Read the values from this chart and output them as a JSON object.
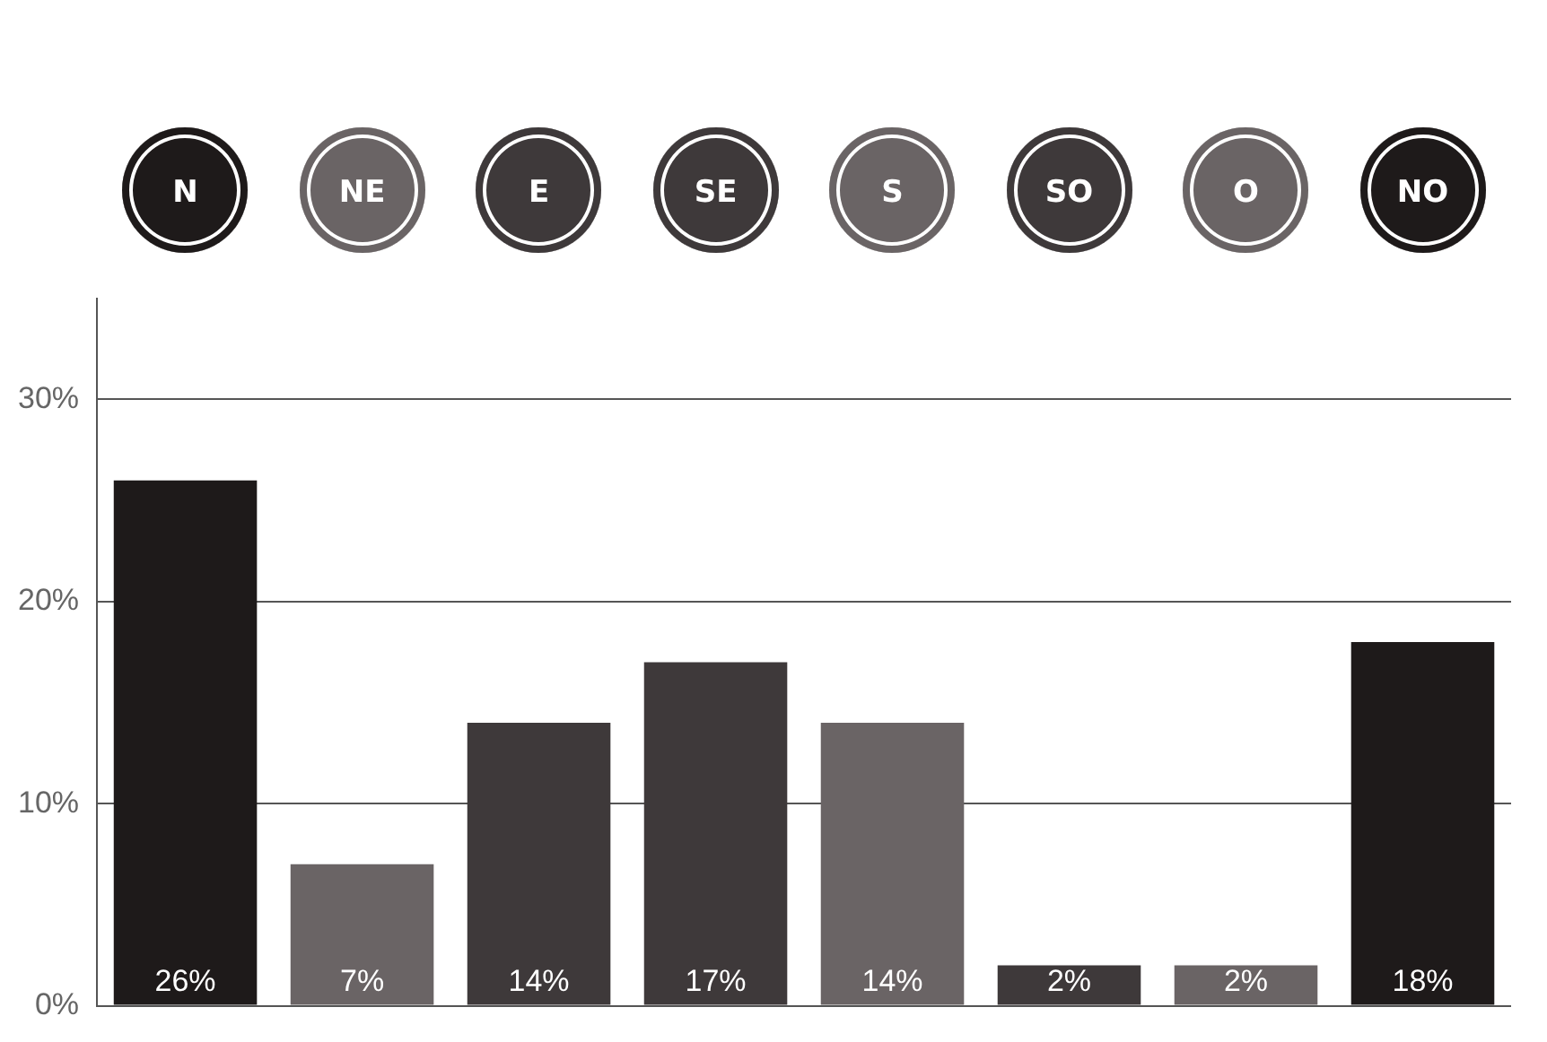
{
  "chart_data": {
    "type": "bar",
    "categories": [
      "N",
      "NE",
      "E",
      "SE",
      "S",
      "SO",
      "O",
      "NO"
    ],
    "values": [
      26,
      7,
      14,
      17,
      14,
      2,
      2,
      18
    ],
    "colors": [
      "#1e1a1a",
      "#6a6465",
      "#3e393a",
      "#3e393a",
      "#6a6465",
      "#3e393a",
      "#6a6465",
      "#1e1a1a"
    ],
    "value_labels": [
      "26%",
      "7%",
      "14%",
      "17%",
      "14%",
      "2%",
      "2%",
      "18%"
    ],
    "ylim": [
      0,
      35
    ],
    "yticks": [
      {
        "value": 0,
        "label": "0%"
      },
      {
        "value": 10,
        "label": "10%"
      },
      {
        "value": 20,
        "label": "20%"
      },
      {
        "value": 30,
        "label": "30%"
      }
    ],
    "grid": "y",
    "legend": false
  }
}
